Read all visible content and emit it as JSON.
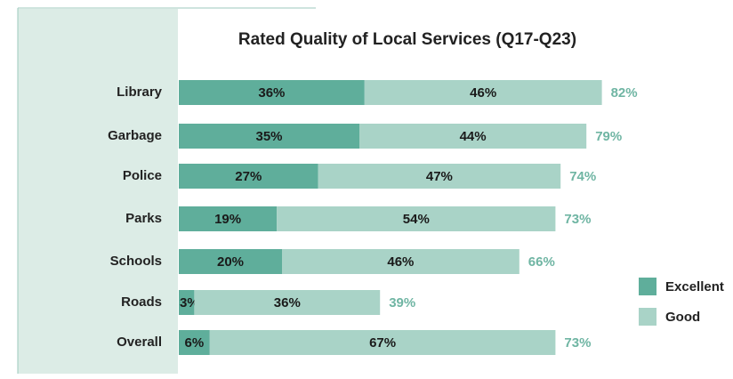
{
  "chart_data": {
    "type": "stacked-bar-horizontal",
    "title": "Rated Quality of Local Services (Q17-Q23)",
    "categories": [
      "Library",
      "Garbage",
      "Police",
      "Parks",
      "Schools",
      "Roads",
      "Overall"
    ],
    "series": [
      {
        "name": "Excellent",
        "color": "#5fae9b",
        "values": [
          36,
          35,
          27,
          19,
          20,
          3,
          6
        ],
        "value_labels": [
          "36%",
          "35%",
          "27%",
          "19%",
          "20%",
          "3%",
          "6%"
        ]
      },
      {
        "name": "Good",
        "color": "#a9d3c7",
        "values": [
          46,
          44,
          47,
          54,
          46,
          36,
          67
        ],
        "value_labels": [
          "46%",
          "44%",
          "47%",
          "54%",
          "46%",
          "36%",
          "67%"
        ]
      }
    ],
    "totals": [
      82,
      79,
      74,
      73,
      66,
      39,
      73
    ],
    "total_labels": [
      "82%",
      "79%",
      "74%",
      "73%",
      "66%",
      "39%",
      "73%"
    ],
    "total_color": "#6fb5a3",
    "legend": "right"
  }
}
